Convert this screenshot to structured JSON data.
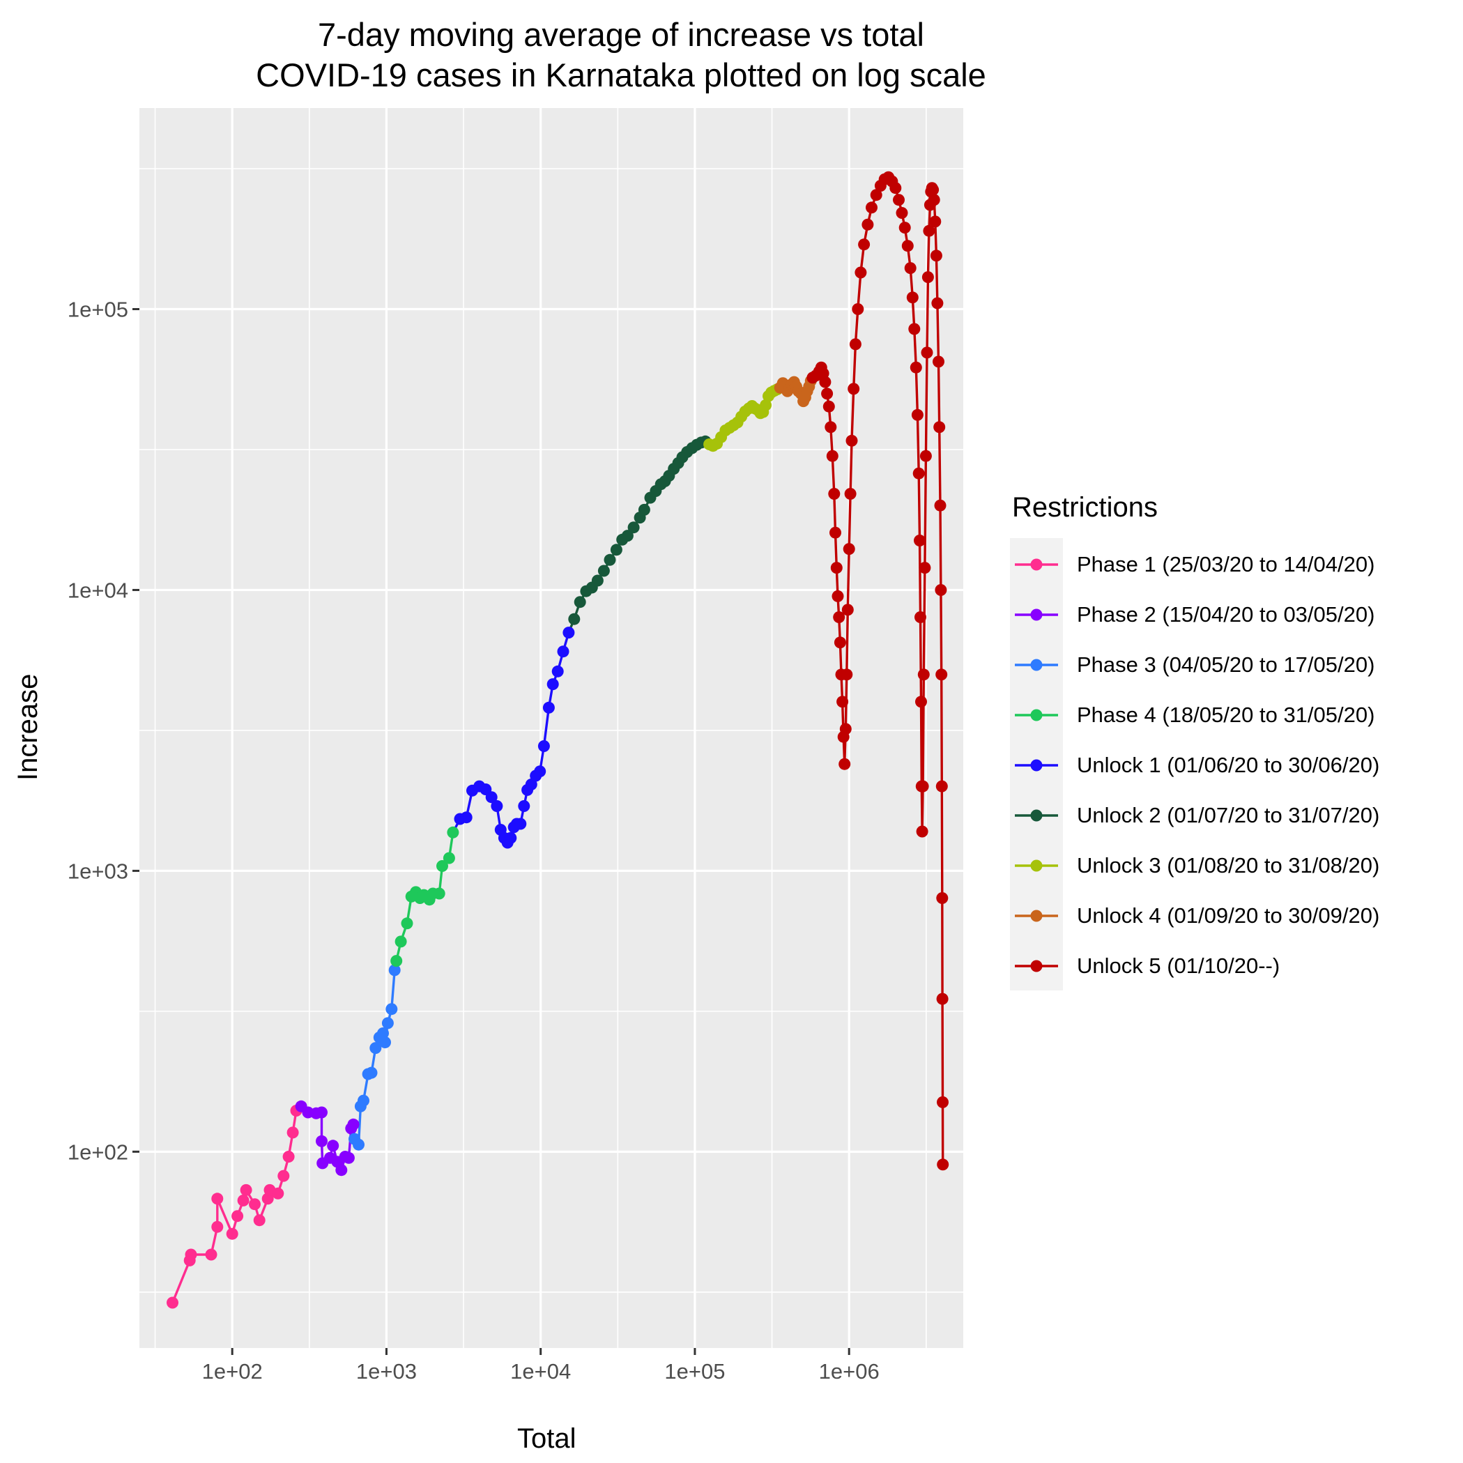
{
  "chart_data": {
    "type": "line",
    "title": [
      "7-day moving average of increase vs total",
      "COVID-19 cases in Karnataka plotted on log scale"
    ],
    "xlabel": "Total",
    "ylabel": "Increase",
    "x_scale": "log10",
    "y_scale": "log10",
    "xlim": [
      25,
      5500000
    ],
    "ylim": [
      20,
      520000
    ],
    "x_ticks": [
      {
        "value": 100,
        "label": "1e+02"
      },
      {
        "value": 1000,
        "label": "1e+03"
      },
      {
        "value": 10000,
        "label": "1e+04"
      },
      {
        "value": 100000,
        "label": "1e+05"
      },
      {
        "value": 1000000,
        "label": "1e+06"
      }
    ],
    "y_ticks": [
      {
        "value": 100,
        "label": "1e+02"
      },
      {
        "value": 1000,
        "label": "1e+03"
      },
      {
        "value": 10000,
        "label": "1e+04"
      },
      {
        "value": 100000,
        "label": "1e+05"
      }
    ],
    "grid": true,
    "legend_position": "right",
    "legend_title": "Restrictions",
    "series": [
      {
        "name": "Phase 1 (25/03/20 to 14/04/20)",
        "color": "#ff2d8f",
        "points": [
          [
            41,
            29
          ],
          [
            53,
            41
          ],
          [
            54,
            43
          ],
          [
            73,
            43
          ],
          [
            80,
            54
          ],
          [
            80,
            68
          ],
          [
            100,
            51
          ],
          [
            108,
            59
          ],
          [
            118,
            67
          ],
          [
            123,
            73
          ],
          [
            140,
            65
          ],
          [
            150,
            57
          ],
          [
            170,
            68
          ],
          [
            175,
            73
          ],
          [
            198,
            71
          ],
          [
            215,
            82
          ],
          [
            232,
            96
          ],
          [
            247,
            117
          ],
          [
            260,
            140
          ]
        ]
      },
      {
        "name": "Phase 2 (15/04/20 to 03/05/20)",
        "color": "#8800ff",
        "points": [
          [
            280,
            145
          ],
          [
            310,
            138
          ],
          [
            350,
            137
          ],
          [
            380,
            138
          ],
          [
            380,
            109
          ],
          [
            385,
            91
          ],
          [
            430,
            95
          ],
          [
            450,
            105
          ],
          [
            480,
            92
          ],
          [
            510,
            86
          ],
          [
            540,
            96
          ],
          [
            570,
            95
          ],
          [
            590,
            121
          ],
          [
            610,
            125
          ]
        ]
      },
      {
        "name": "Phase 3 (04/05/20 to 17/05/20)",
        "color": "#2e7bff",
        "points": [
          [
            620,
            111
          ],
          [
            660,
            106
          ],
          [
            680,
            145
          ],
          [
            710,
            152
          ],
          [
            760,
            189
          ],
          [
            800,
            191
          ],
          [
            850,
            234
          ],
          [
            900,
            255
          ],
          [
            950,
            264
          ],
          [
            980,
            245
          ],
          [
            1020,
            287
          ],
          [
            1080,
            322
          ],
          [
            1130,
            443
          ]
        ]
      },
      {
        "name": "Phase 4 (18/05/20 to 31/05/20)",
        "color": "#1ec85a",
        "points": [
          [
            1160,
            478
          ],
          [
            1240,
            560
          ],
          [
            1360,
            650
          ],
          [
            1450,
            810
          ],
          [
            1550,
            840
          ],
          [
            1650,
            800
          ],
          [
            1750,
            820
          ],
          [
            1900,
            790
          ],
          [
            2000,
            830
          ],
          [
            2200,
            830
          ],
          [
            2300,
            1040
          ],
          [
            2550,
            1110
          ],
          [
            2700,
            1370
          ]
        ]
      },
      {
        "name": "Unlock 1 (01/06/20 to 30/06/20)",
        "color": "#1c0dff",
        "points": [
          [
            3000,
            1530
          ],
          [
            3300,
            1550
          ],
          [
            3600,
            1930
          ],
          [
            4000,
            2000
          ],
          [
            4400,
            1950
          ],
          [
            4800,
            1830
          ],
          [
            5200,
            1700
          ],
          [
            5500,
            1400
          ],
          [
            5800,
            1310
          ],
          [
            6100,
            1260
          ],
          [
            6400,
            1310
          ],
          [
            6700,
            1430
          ],
          [
            7000,
            1470
          ],
          [
            7400,
            1470
          ],
          [
            7800,
            1700
          ],
          [
            8200,
            1940
          ],
          [
            8700,
            2030
          ],
          [
            9300,
            2180
          ],
          [
            9900,
            2260
          ],
          [
            10500,
            2780
          ],
          [
            11300,
            3810
          ],
          [
            12000,
            4620
          ],
          [
            12900,
            5130
          ],
          [
            14000,
            6040
          ],
          [
            15200,
            7050
          ]
        ]
      },
      {
        "name": "Unlock 2 (01/07/20 to 31/07/20)",
        "color": "#17583a",
        "points": [
          [
            16500,
            7880
          ],
          [
            18000,
            9060
          ],
          [
            19700,
            9900
          ],
          [
            21500,
            10200
          ],
          [
            23400,
            10800
          ],
          [
            25700,
            11700
          ],
          [
            28100,
            12800
          ],
          [
            31000,
            13900
          ],
          [
            33800,
            15100
          ],
          [
            36600,
            15600
          ],
          [
            40100,
            16700
          ],
          [
            44000,
            18100
          ],
          [
            47000,
            19300
          ],
          [
            51400,
            21300
          ],
          [
            55800,
            22500
          ],
          [
            60200,
            23800
          ],
          [
            64000,
            24400
          ],
          [
            68000,
            25500
          ],
          [
            73000,
            27000
          ],
          [
            78000,
            28300
          ],
          [
            83000,
            29700
          ],
          [
            89000,
            31000
          ],
          [
            96000,
            32000
          ],
          [
            103000,
            32900
          ],
          [
            110000,
            33500
          ],
          [
            117000,
            33800
          ]
        ]
      },
      {
        "name": "Unlock 3 (01/08/20 to 31/08/20)",
        "color": "#a6c20a",
        "points": [
          [
            124000,
            33000
          ],
          [
            131000,
            32600
          ],
          [
            139000,
            33200
          ],
          [
            148000,
            35000
          ],
          [
            158000,
            37000
          ],
          [
            168000,
            37800
          ],
          [
            178000,
            38600
          ],
          [
            189000,
            39500
          ],
          [
            200000,
            41400
          ],
          [
            212000,
            43200
          ],
          [
            224000,
            44300
          ],
          [
            235000,
            45200
          ],
          [
            245000,
            44300
          ],
          [
            255000,
            43800
          ],
          [
            266000,
            42600
          ],
          [
            277000,
            43000
          ],
          [
            288000,
            45500
          ],
          [
            300000,
            49000
          ],
          [
            313000,
            50500
          ],
          [
            327000,
            51200
          ],
          [
            342000,
            51800
          ]
        ]
      },
      {
        "name": "Unlock 4 (01/09/20 to 30/09/20)",
        "color": "#c9651c",
        "points": [
          [
            357000,
            52500
          ],
          [
            372000,
            54500
          ],
          [
            385000,
            53000
          ],
          [
            398000,
            51000
          ],
          [
            410000,
            52500
          ],
          [
            425000,
            54000
          ],
          [
            440000,
            55000
          ],
          [
            455000,
            53000
          ],
          [
            470000,
            51000
          ],
          [
            488000,
            50000
          ],
          [
            505000,
            47000
          ],
          [
            520000,
            48500
          ],
          [
            535000,
            51000
          ],
          [
            550000,
            53000
          ],
          [
            565000,
            55500
          ]
        ]
      },
      {
        "name": "Unlock 5 (01/10/20--)",
        "color": "#c00000",
        "points": [
          [
            580000,
            57000
          ],
          [
            610000,
            58000
          ],
          [
            640000,
            60000
          ],
          [
            660000,
            62000
          ],
          [
            680000,
            59000
          ],
          [
            700000,
            55000
          ],
          [
            720000,
            50000
          ],
          [
            740000,
            45000
          ],
          [
            760000,
            38000
          ],
          [
            780000,
            30000
          ],
          [
            800000,
            22000
          ],
          [
            815000,
            16000
          ],
          [
            830000,
            12000
          ],
          [
            845000,
            9500
          ],
          [
            860000,
            8000
          ],
          [
            875000,
            6500
          ],
          [
            890000,
            5000
          ],
          [
            905000,
            4000
          ],
          [
            920000,
            3000
          ],
          [
            935000,
            2400
          ],
          [
            950000,
            3200
          ],
          [
            965000,
            5000
          ],
          [
            980000,
            8500
          ],
          [
            1000000,
            14000
          ],
          [
            1020000,
            22000
          ],
          [
            1040000,
            34000
          ],
          [
            1070000,
            52000
          ],
          [
            1100000,
            75000
          ],
          [
            1140000,
            100000
          ],
          [
            1190000,
            135000
          ],
          [
            1250000,
            170000
          ],
          [
            1320000,
            200000
          ],
          [
            1400000,
            230000
          ],
          [
            1500000,
            255000
          ],
          [
            1600000,
            275000
          ],
          [
            1700000,
            290000
          ],
          [
            1800000,
            295000
          ],
          [
            1900000,
            285000
          ],
          [
            2000000,
            270000
          ],
          [
            2100000,
            245000
          ],
          [
            2200000,
            220000
          ],
          [
            2300000,
            195000
          ],
          [
            2400000,
            168000
          ],
          [
            2500000,
            140000
          ],
          [
            2580000,
            110000
          ],
          [
            2650000,
            85000
          ],
          [
            2720000,
            62000
          ],
          [
            2780000,
            42000
          ],
          [
            2830000,
            26000
          ],
          [
            2870000,
            15000
          ],
          [
            2900000,
            8000
          ],
          [
            2930000,
            4000
          ],
          [
            2955000,
            2000
          ],
          [
            2980000,
            1380
          ],
          [
            3010000,
            2000
          ],
          [
            3050000,
            5000
          ],
          [
            3100000,
            12000
          ],
          [
            3150000,
            30000
          ],
          [
            3200000,
            70000
          ],
          [
            3250000,
            130000
          ],
          [
            3300000,
            190000
          ],
          [
            3350000,
            235000
          ],
          [
            3400000,
            262000
          ],
          [
            3450000,
            270000
          ],
          [
            3500000,
            266000
          ],
          [
            3560000,
            245000
          ],
          [
            3620000,
            205000
          ],
          [
            3680000,
            155000
          ],
          [
            3740000,
            105000
          ],
          [
            3800000,
            65000
          ],
          [
            3850000,
            38000
          ],
          [
            3900000,
            20000
          ],
          [
            3940000,
            10000
          ],
          [
            3970000,
            5000
          ],
          [
            3995000,
            2000
          ],
          [
            4015000,
            800
          ],
          [
            4030000,
            350
          ],
          [
            4045000,
            150
          ],
          [
            4055000,
            90
          ]
        ]
      }
    ]
  }
}
